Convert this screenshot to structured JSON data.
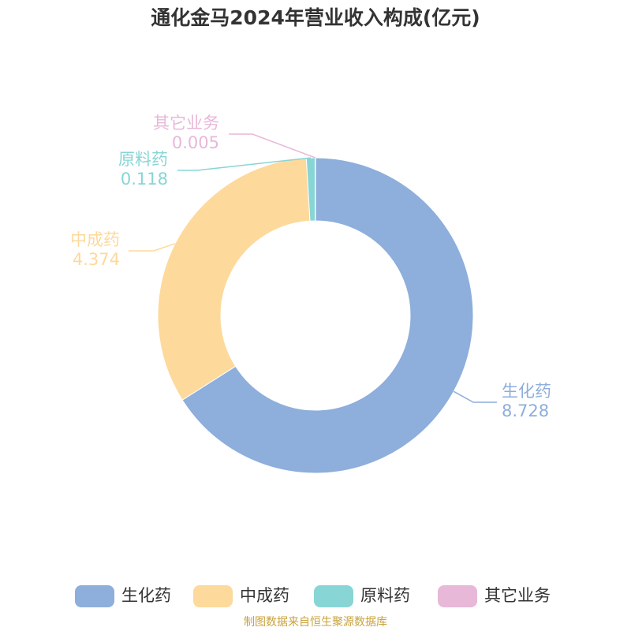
{
  "chart_data": {
    "type": "donut",
    "title": "通化金马2024年营业收入构成(亿元)",
    "categories": [
      "生化药",
      "中成药",
      "原料药",
      "其它业务"
    ],
    "values": [
      8.728,
      4.374,
      0.118,
      0.005
    ],
    "colors": [
      "#8eaedb",
      "#fdd99b",
      "#88d5d5",
      "#e8b8d8"
    ],
    "legend": "bottom",
    "source": "制图数据来自恒生聚源数据库"
  }
}
